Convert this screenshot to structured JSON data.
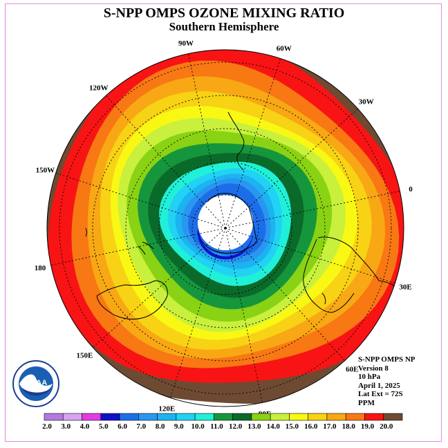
{
  "title": "S-NPP OMPS OZONE MIXING RATIO",
  "subtitle": "Southern Hemisphere",
  "meta": {
    "instrument": "S-NPP OMPS NP",
    "version": "Version 8",
    "level": "10 hPa",
    "date": "April 1, 2025",
    "lat_ext": "Lat Ext = 72S",
    "units": "PPM"
  },
  "logo_text": "NOAA",
  "longitude_labels": [
    {
      "text": "0",
      "angle": -12
    },
    {
      "text": "30W",
      "angle": -42
    },
    {
      "text": "60W",
      "angle": -72
    },
    {
      "text": "90W",
      "angle": -102
    },
    {
      "text": "120W",
      "angle": -132
    },
    {
      "text": "150W",
      "angle": -162
    },
    {
      "text": "180",
      "angle": 168
    },
    {
      "text": "150E",
      "angle": 138
    },
    {
      "text": "120E",
      "angle": 108
    },
    {
      "text": "90E",
      "angle": 78
    },
    {
      "text": "60E",
      "angle": 48
    },
    {
      "text": "30E",
      "angle": 18
    }
  ],
  "colorbar": {
    "labels": [
      "2.0",
      "3.0",
      "4.0",
      "5.0",
      "6.0",
      "7.0",
      "8.0",
      "9.0",
      "10.0",
      "11.0",
      "12.0",
      "13.0",
      "14.0",
      "15.0",
      "16.0",
      "17.0",
      "18.0",
      "19.0",
      "20.0"
    ],
    "colors": [
      "#b07ae0",
      "#d6a4f0",
      "#e23ce2",
      "#1010c8",
      "#1c6ee8",
      "#2a96f0",
      "#1cb4f0",
      "#22d2f4",
      "#20f0d8",
      "#16963c",
      "#0a6a2a",
      "#8ad214",
      "#c8f03c",
      "#f8f814",
      "#f8d214",
      "#f8a814",
      "#f87814",
      "#f81414",
      "#6e4a32"
    ]
  },
  "map_field": {
    "colors": [
      "#6e4a32",
      "#f81414",
      "#f87814",
      "#f8a814",
      "#f8d214",
      "#f8f814",
      "#c8f03c",
      "#8ad214",
      "#16963c",
      "#0a6a2a",
      "#20f0d8",
      "#22d2f4",
      "#1cb4f0",
      "#2a96f0",
      "#1c6ee8"
    ],
    "radii": [
      290,
      256,
      228,
      208,
      190,
      172,
      158,
      142,
      124,
      108,
      92,
      80,
      70,
      62,
      54
    ]
  },
  "colors": {
    "pole_hole": "#ffffff",
    "frame": "#e08ae0"
  }
}
